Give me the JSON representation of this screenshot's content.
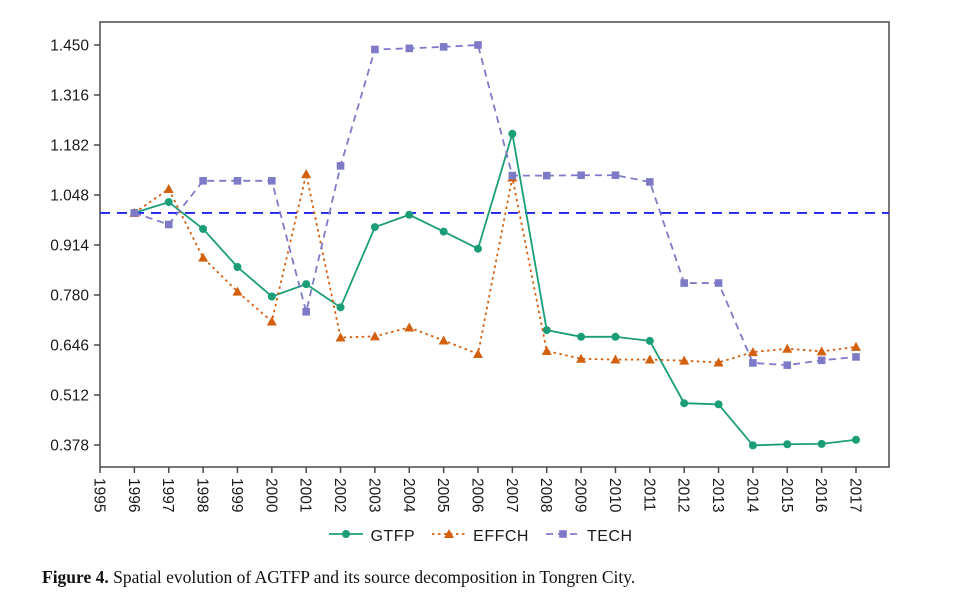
{
  "figure": {
    "caption_label": "Figure 4.",
    "caption_text": " Spatial evolution of AGTFP and its source decomposition in Tongren City."
  },
  "chart_data": {
    "type": "line",
    "title": "",
    "xlabel": "",
    "ylabel": "",
    "grid": false,
    "legend_position": "bottom-center",
    "x_axis_ticks": [
      1995,
      1996,
      1997,
      1998,
      1999,
      2000,
      2001,
      2002,
      2003,
      2004,
      2005,
      2006,
      2007,
      2008,
      2009,
      2010,
      2011,
      2012,
      2013,
      2014,
      2015,
      2016,
      2017
    ],
    "y_ticks": [
      "1.450",
      "1.316",
      "1.182",
      "1.048",
      "0.914",
      "0.780",
      "0.646",
      "0.512",
      "0.378"
    ],
    "ylim": [
      0.32,
      1.51
    ],
    "xlim": [
      1995,
      2018
    ],
    "x": [
      1996,
      1997,
      1998,
      1999,
      2000,
      2001,
      2002,
      2003,
      2004,
      2005,
      2006,
      2007,
      2008,
      2009,
      2010,
      2011,
      2012,
      2013,
      2014,
      2015,
      2016,
      2017
    ],
    "reference_line": {
      "value": 1.0,
      "color": "#2222ee",
      "style": "dashed"
    },
    "series": [
      {
        "name": "GTFP",
        "color": "#1b9e77",
        "marker": "circle",
        "line_style": "solid",
        "values": [
          1.0,
          1.029,
          0.957,
          0.855,
          0.776,
          0.809,
          0.747,
          0.962,
          0.995,
          0.95,
          0.904,
          1.212,
          0.686,
          0.668,
          0.668,
          0.657,
          0.49,
          0.487,
          0.377,
          0.38,
          0.381,
          0.392
        ]
      },
      {
        "name": "EFFCH",
        "color": "#d3600e",
        "marker": "triangle",
        "line_style": "dotted",
        "values": [
          1.0,
          1.064,
          0.88,
          0.789,
          0.709,
          1.104,
          0.666,
          0.669,
          0.693,
          0.658,
          0.622,
          1.095,
          0.63,
          0.609,
          0.607,
          0.607,
          0.604,
          0.599,
          0.627,
          0.636,
          0.629,
          0.641
        ]
      },
      {
        "name": "TECH",
        "color": "#7f7ac8",
        "marker": "square",
        "line_style": "dashed",
        "values": [
          1.0,
          0.969,
          1.086,
          1.086,
          1.086,
          0.735,
          1.126,
          1.438,
          1.441,
          1.445,
          1.45,
          1.1,
          1.1,
          1.101,
          1.101,
          1.083,
          0.812,
          0.812,
          0.598,
          0.592,
          0.605,
          0.614
        ]
      }
    ]
  }
}
